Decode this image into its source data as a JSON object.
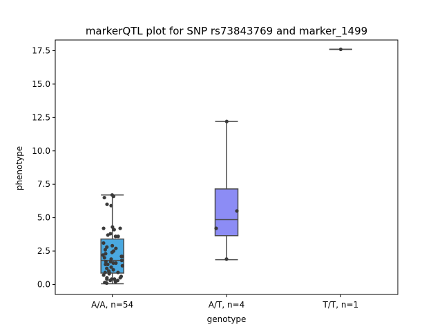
{
  "chart_data": {
    "type": "box",
    "title": "markerQTL plot for SNP rs73843769 and marker_1499",
    "xlabel": "genotype",
    "ylabel": "phenotype",
    "ylim": [
      -0.75,
      18.3
    ],
    "yticks": [
      0.0,
      2.5,
      5.0,
      7.5,
      10.0,
      12.5,
      15.0,
      17.5
    ],
    "ytick_labels": [
      "0.0",
      "2.5",
      "5.0",
      "7.5",
      "10.0",
      "12.5",
      "15.0",
      "17.5"
    ],
    "grid": false,
    "categories": [
      "A/A, n=54",
      "A/T, n=4",
      "T/T, n=1"
    ],
    "boxes": [
      {
        "category": "A/A, n=54",
        "color": "#4aa8e0",
        "whisker_low": 0.05,
        "q1": 0.85,
        "median": 1.8,
        "q3": 3.4,
        "whisker_high": 6.7
      },
      {
        "category": "A/T, n=4",
        "color": "#8c8cf5",
        "whisker_low": 1.85,
        "q1": 3.65,
        "median": 4.85,
        "q3": 7.15,
        "whisker_high": 12.2
      },
      {
        "category": "T/T, n=1",
        "color": "#c87ce0",
        "whisker_low": 17.6,
        "q1": 17.6,
        "median": 17.6,
        "q3": 17.6,
        "whisker_high": 17.6
      }
    ],
    "points": [
      {
        "category": "A/A, n=54",
        "values": [
          6.7,
          6.6,
          6.5,
          6.0,
          5.9,
          4.3,
          4.2,
          4.2,
          4.1,
          3.8,
          3.7,
          3.6,
          3.6,
          3.1,
          2.9,
          2.8,
          2.7,
          2.6,
          2.5,
          2.4,
          2.3,
          2.2,
          2.1,
          2.1,
          2.0,
          1.9,
          1.8,
          1.7,
          1.7,
          1.6,
          1.6,
          1.5,
          1.5,
          1.4,
          1.3,
          1.2,
          1.1,
          1.0,
          0.9,
          0.9,
          0.9,
          0.8,
          0.7,
          0.6,
          0.5,
          0.5,
          0.4,
          0.4,
          0.4,
          0.3,
          0.3,
          0.2,
          0.15,
          0.1
        ]
      },
      {
        "category": "A/T, n=4",
        "values": [
          12.2,
          5.5,
          4.2,
          1.9
        ]
      },
      {
        "category": "T/T, n=1",
        "values": [
          17.6
        ]
      }
    ]
  }
}
